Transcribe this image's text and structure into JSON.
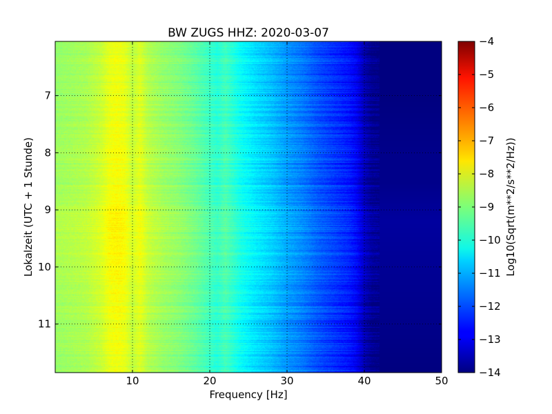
{
  "chart_data": {
    "type": "heatmap",
    "title": "BW ZUGS HHZ: 2020-03-07",
    "xlabel": "Frequency [Hz]",
    "ylabel": "Lokalzeit (UTC + 1 Stunde)",
    "xlim": [
      0,
      50
    ],
    "ylim": [
      6.05,
      11.85
    ],
    "y_inverted": true,
    "x_ticks": [
      10,
      20,
      30,
      40,
      50
    ],
    "y_ticks": [
      7,
      8,
      9,
      10,
      11
    ],
    "grid": true,
    "colormap": "jet",
    "colorbar": {
      "label": "Log10(Sqrt(m**2/s**2/Hz))",
      "min": -14,
      "max": -4,
      "ticks": [
        -4,
        -5,
        -6,
        -7,
        -8,
        -9,
        -10,
        -11,
        -12,
        -13,
        -14
      ]
    },
    "psd_profile_by_frequency": {
      "frequency_hz": [
        0,
        2,
        4,
        6,
        7,
        8,
        9,
        10,
        11,
        12,
        14,
        16,
        18,
        20,
        21,
        22,
        24,
        26,
        28,
        30,
        32,
        34,
        36,
        38,
        39,
        40,
        41,
        42,
        44,
        50
      ],
      "log10_psd": [
        -8.8,
        -8.7,
        -8.6,
        -8.3,
        -8.0,
        -7.9,
        -8.0,
        -8.4,
        -8.1,
        -8.5,
        -8.8,
        -9.0,
        -9.3,
        -9.7,
        -9.9,
        -9.6,
        -10.2,
        -10.6,
        -10.9,
        -11.3,
        -11.6,
        -12.0,
        -12.3,
        -12.6,
        -12.9,
        -13.5,
        -13.9,
        -14.0,
        -14.0,
        -14.0
      ]
    },
    "psd_time_adjustment": {
      "local_time_h": [
        6.05,
        7,
        8,
        8.5,
        9.2,
        10,
        11,
        11.85
      ],
      "delta_log10": [
        0.0,
        0.0,
        0.1,
        0.1,
        0.3,
        0.2,
        0.1,
        0.0
      ]
    }
  }
}
